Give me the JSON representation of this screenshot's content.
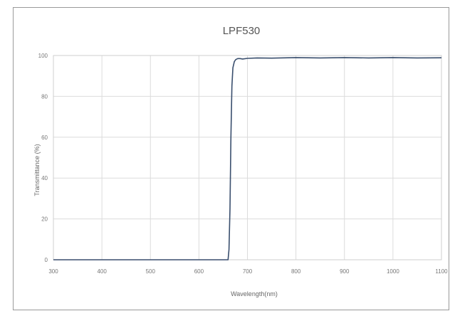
{
  "chart_data": {
    "type": "line",
    "title": "LPF530",
    "xlabel": "Wavelength(nm)",
    "ylabel": "Transmittance (%)",
    "xlim": [
      300,
      1100
    ],
    "ylim": [
      0,
      100
    ],
    "x_ticks": [
      "300",
      "400",
      "500",
      "600",
      "700",
      "800",
      "900",
      "1000",
      "1100"
    ],
    "y_ticks": [
      "0",
      "20",
      "40",
      "60",
      "80",
      "100"
    ],
    "grid": true,
    "legend": "none",
    "line_color": "#3a4f6e",
    "series": [
      {
        "x": [
          300,
          400,
          500,
          600,
          660,
          662,
          664,
          666,
          668,
          670,
          673,
          676,
          680,
          685,
          690,
          700,
          720,
          750,
          800,
          850,
          900,
          950,
          1000,
          1050,
          1100
        ],
        "y": [
          0,
          0,
          0,
          0,
          0,
          5,
          25,
          60,
          85,
          94,
          97,
          98,
          98.5,
          98.5,
          98.3,
          98.6,
          98.8,
          98.7,
          99,
          98.8,
          99,
          98.8,
          99,
          98.8,
          98.9
        ]
      }
    ]
  }
}
